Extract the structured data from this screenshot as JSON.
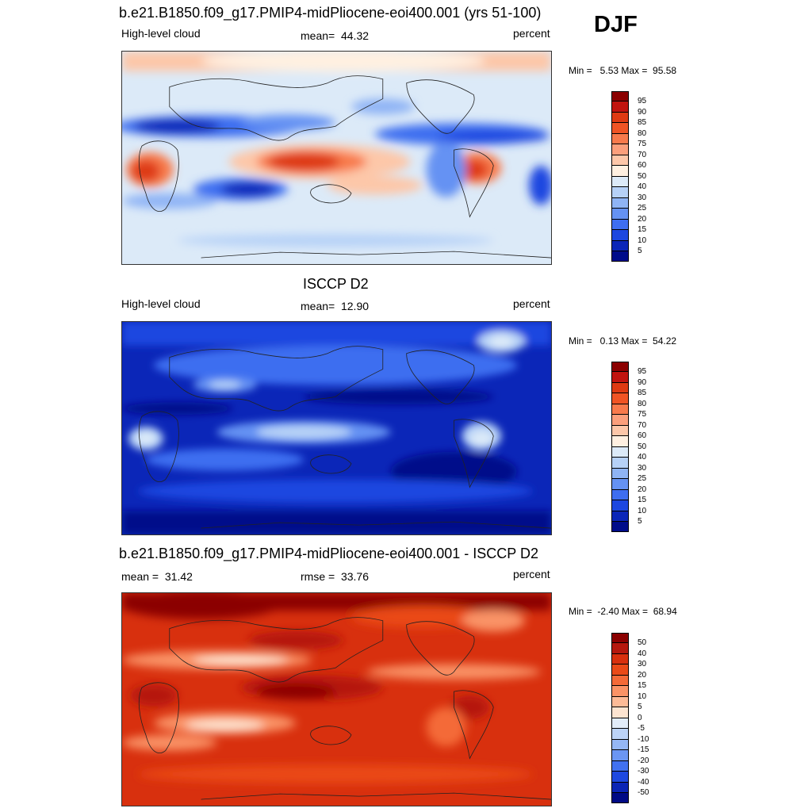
{
  "season": "DJF",
  "panels": [
    {
      "id": "model",
      "title": "b.e21.B1850.f09_g17.PMIP4-midPliocene-eoi400.001 (yrs 51-100)",
      "variable": "High-level cloud",
      "stat": "mean=  44.32",
      "units": "percent",
      "minmax": "Min =   5.53 Max =  95.58",
      "colorbar": {
        "labels": [
          "95",
          "90",
          "85",
          "80",
          "75",
          "70",
          "60",
          "50",
          "40",
          "30",
          "25",
          "20",
          "15",
          "10",
          "5"
        ],
        "colors": [
          "#8b0000",
          "#c1140f",
          "#de3a12",
          "#f05424",
          "#f87a4c",
          "#fb9f7c",
          "#fdc7a9",
          "#fff0e1",
          "#dceaf8",
          "#b6d1f7",
          "#8fb4f5",
          "#6592f3",
          "#3e6ef0",
          "#1c47e0",
          "#0b26b8",
          "#000c8a"
        ]
      }
    },
    {
      "id": "obs",
      "title": "ISCCP D2",
      "variable": "High-level cloud",
      "stat": "mean=  12.90",
      "units": "percent",
      "minmax": "Min =   0.13 Max =  54.22",
      "colorbar": {
        "labels": [
          "95",
          "90",
          "85",
          "80",
          "75",
          "70",
          "60",
          "50",
          "40",
          "30",
          "25",
          "20",
          "15",
          "10",
          "5"
        ],
        "colors": [
          "#8b0000",
          "#c1140f",
          "#de3a12",
          "#f05424",
          "#f87a4c",
          "#fb9f7c",
          "#fdc7a9",
          "#fff0e1",
          "#dceaf8",
          "#b6d1f7",
          "#8fb4f5",
          "#6592f3",
          "#3e6ef0",
          "#1c47e0",
          "#0b26b8",
          "#000c8a"
        ]
      }
    },
    {
      "id": "diff",
      "title": "b.e21.B1850.f09_g17.PMIP4-midPliocene-eoi400.001 - ISCCP D2",
      "variable": "mean =  31.42",
      "stat": "rmse =  33.76",
      "units": "percent",
      "minmax": "Min =  -2.40 Max =  68.94",
      "colorbar": {
        "labels": [
          "50",
          "40",
          "30",
          "20",
          "15",
          "10",
          "5",
          "0",
          "-5",
          "-10",
          "-15",
          "-20",
          "-30",
          "-40",
          "-50"
        ],
        "colors": [
          "#8b0000",
          "#b5180e",
          "#d8300e",
          "#ea4a18",
          "#f46a38",
          "#fa9366",
          "#fdbb97",
          "#fde4d0",
          "#e2ecf9",
          "#bcd3f7",
          "#95b7f5",
          "#6b96f3",
          "#4171f0",
          "#1e49e0",
          "#0b25b5",
          "#000a85"
        ]
      }
    }
  ]
}
